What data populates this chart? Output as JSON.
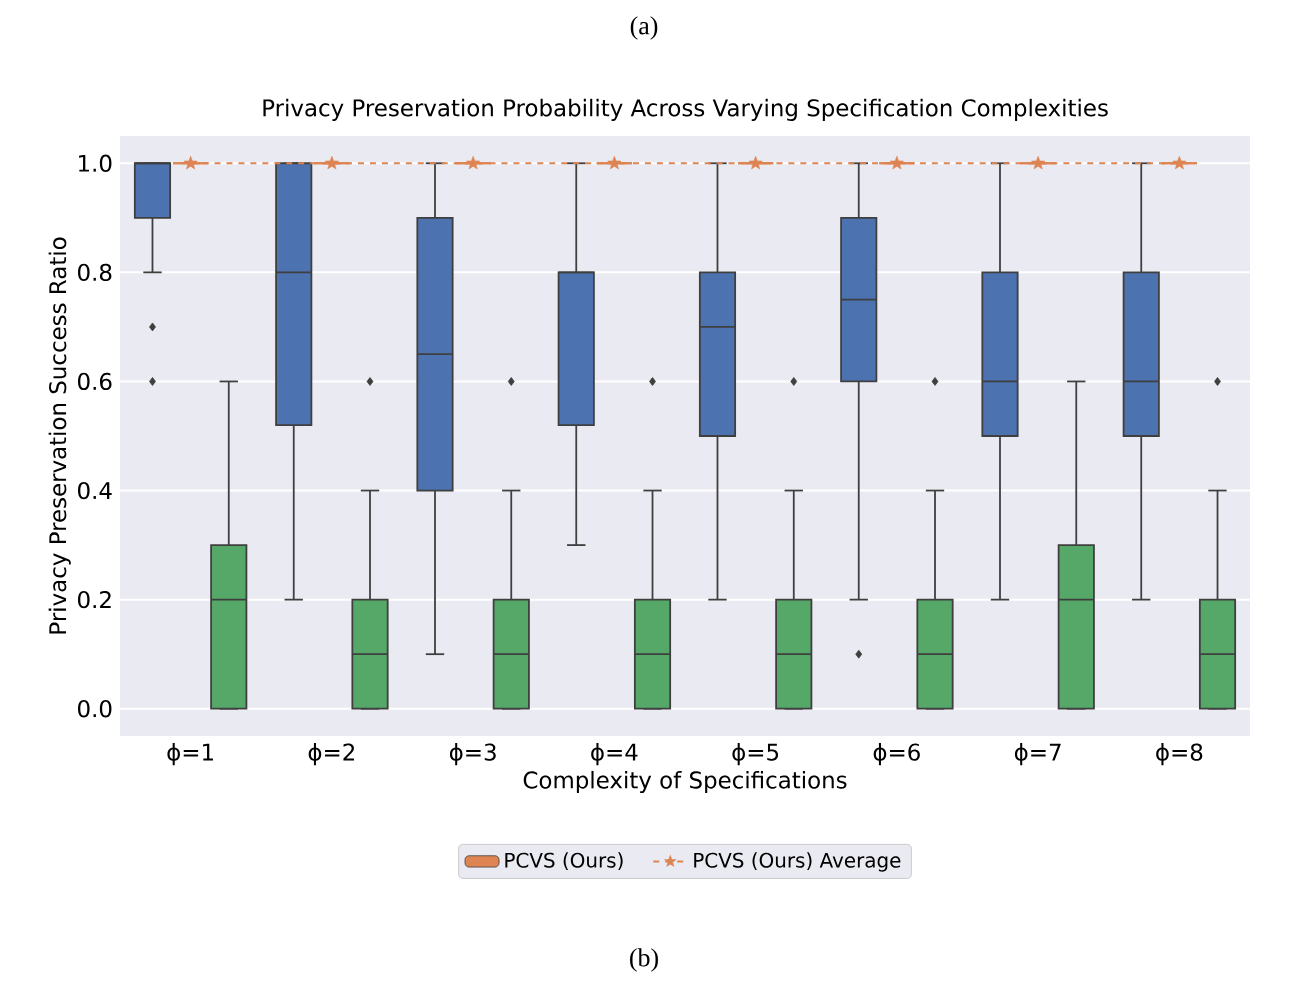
{
  "chart_data": {
    "type": "box",
    "title": "Privacy Preservation Probability Across Varying Specification Complexities",
    "xlabel": "Complexity of Specifications",
    "ylabel": "Privacy Preservation Success Ratio",
    "annotations": [
      "(a)",
      "(b)"
    ],
    "categories": [
      "ϕ=1",
      "ϕ=2",
      "ϕ=3",
      "ϕ=4",
      "ϕ=5",
      "ϕ=6",
      "ϕ=7",
      "ϕ=8"
    ],
    "ylim": [
      -0.05,
      1.05
    ],
    "yticks": [
      {
        "value": 0,
        "label": "0.0"
      },
      0.2,
      0.4,
      0.6,
      0.8,
      {
        "value": 1,
        "label": "1.0"
      }
    ],
    "grid": "y",
    "legend": "bottom",
    "series": [
      {
        "color": "#4c72b0",
        "boxes": [
          {
            "low": 0.8,
            "q1": 0.9,
            "median": 1,
            "q3": 1,
            "high": 1,
            "outliers": [
              0.7,
              0.6
            ]
          },
          {
            "low": 0.2,
            "q1": 0.52,
            "median": 0.8,
            "q3": 1,
            "high": 1
          },
          {
            "low": 0.1,
            "q1": 0.4,
            "median": 0.65,
            "q3": 0.9,
            "high": 1
          },
          {
            "low": 0.3,
            "q1": 0.52,
            "median": 0.8,
            "q3": 0.8,
            "high": 1
          },
          {
            "low": 0.2,
            "q1": 0.5,
            "median": 0.7,
            "q3": 0.8,
            "high": 1
          },
          {
            "low": 0.2,
            "q1": 0.6,
            "median": 0.75,
            "q3": 0.9,
            "high": 1,
            "outliers": [
              0.1
            ]
          },
          {
            "low": 0.2,
            "q1": 0.5,
            "median": 0.6,
            "q3": 0.8,
            "high": 1
          },
          {
            "low": 0.2,
            "q1": 0.5,
            "median": 0.6,
            "q3": 0.8,
            "high": 1
          }
        ]
      },
      {
        "name": "PCVS (Ours)",
        "color": "#dd8452",
        "boxes": [
          {
            "low": 1,
            "q1": 1,
            "median": 1,
            "q3": 1,
            "high": 1
          },
          {
            "low": 1,
            "q1": 1,
            "median": 1,
            "q3": 1,
            "high": 1
          },
          {
            "low": 1,
            "q1": 1,
            "median": 1,
            "q3": 1,
            "high": 1
          },
          {
            "low": 1,
            "q1": 1,
            "median": 1,
            "q3": 1,
            "high": 1
          },
          {
            "low": 1,
            "q1": 1,
            "median": 1,
            "q3": 1,
            "high": 1
          },
          {
            "low": 1,
            "q1": 1,
            "median": 1,
            "q3": 1,
            "high": 1
          },
          {
            "low": 1,
            "q1": 1,
            "median": 1,
            "q3": 1,
            "high": 1
          },
          {
            "low": 1,
            "q1": 1,
            "median": 1,
            "q3": 1,
            "high": 1
          }
        ]
      },
      {
        "color": "#55a868",
        "boxes": [
          {
            "low": 0,
            "q1": 0,
            "median": 0.2,
            "q3": 0.3,
            "high": 0.6
          },
          {
            "low": 0,
            "q1": 0,
            "median": 0.1,
            "q3": 0.2,
            "high": 0.4,
            "outliers": [
              0.6
            ]
          },
          {
            "low": 0,
            "q1": 0,
            "median": 0.1,
            "q3": 0.2,
            "high": 0.4,
            "outliers": [
              0.6
            ]
          },
          {
            "low": 0,
            "q1": 0,
            "median": 0.1,
            "q3": 0.2,
            "high": 0.4,
            "outliers": [
              0.6
            ]
          },
          {
            "low": 0,
            "q1": 0,
            "median": 0.1,
            "q3": 0.2,
            "high": 0.4,
            "outliers": [
              0.6
            ]
          },
          {
            "low": 0,
            "q1": 0,
            "median": 0.1,
            "q3": 0.2,
            "high": 0.4,
            "outliers": [
              0.6
            ]
          },
          {
            "low": 0,
            "q1": 0,
            "median": 0.2,
            "q3": 0.3,
            "high": 0.6
          },
          {
            "low": 0,
            "q1": 0,
            "median": 0.1,
            "q3": 0.2,
            "high": 0.4,
            "outliers": [
              0.6
            ]
          }
        ]
      },
      {
        "name": "PCVS (Ours) Average",
        "type": "line",
        "color": "#dd8452",
        "marker": "star",
        "line_style": "dashed",
        "values": [
          1,
          1,
          1,
          1,
          1,
          1,
          1,
          1
        ]
      }
    ]
  }
}
